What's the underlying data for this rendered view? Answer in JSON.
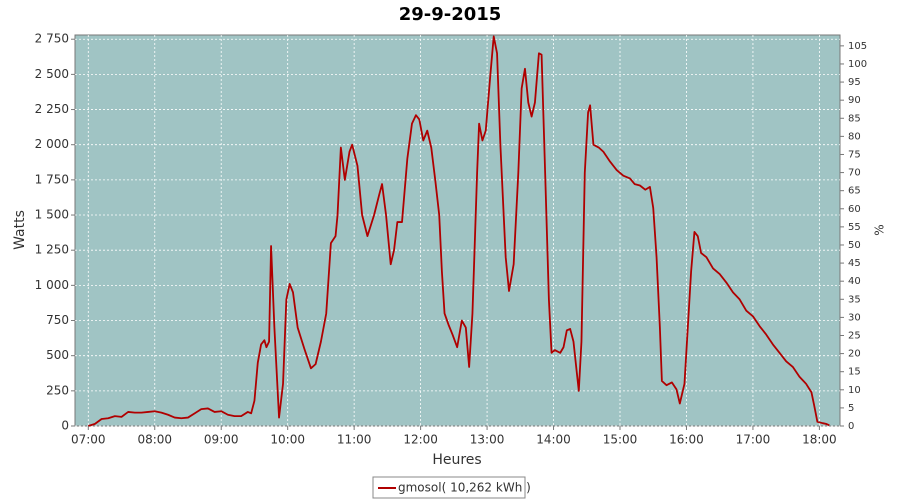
{
  "chart_data": {
    "type": "line",
    "title": "29-9-2015",
    "xlabel": "Heures",
    "ylabel": "Watts",
    "y2label": "%",
    "x": [
      7.0,
      7.1,
      7.2,
      7.3,
      7.4,
      7.5,
      7.6,
      7.7,
      7.8,
      7.9,
      8.0,
      8.1,
      8.2,
      8.3,
      8.4,
      8.5,
      8.6,
      8.7,
      8.8,
      8.9,
      9.0,
      9.1,
      9.2,
      9.3,
      9.4,
      9.45,
      9.5,
      9.55,
      9.6,
      9.65,
      9.68,
      9.72,
      9.75,
      9.8,
      9.87,
      9.93,
      9.98,
      10.03,
      10.08,
      10.15,
      10.25,
      10.35,
      10.42,
      10.5,
      10.58,
      10.65,
      10.72,
      10.75,
      10.8,
      10.86,
      10.93,
      10.97,
      11.05,
      11.12,
      11.2,
      11.3,
      11.38,
      11.42,
      11.48,
      11.55,
      11.6,
      11.65,
      11.72,
      11.8,
      11.87,
      11.93,
      11.98,
      12.04,
      12.1,
      12.16,
      12.22,
      12.28,
      12.32,
      12.36,
      12.42,
      12.48,
      12.55,
      12.62,
      12.68,
      12.73,
      12.78,
      12.85,
      12.88,
      12.93,
      12.98,
      13.05,
      13.1,
      13.15,
      13.2,
      13.28,
      13.33,
      13.4,
      13.47,
      13.52,
      13.57,
      13.62,
      13.67,
      13.72,
      13.78,
      13.82,
      13.88,
      13.93,
      13.97,
      14.02,
      14.1,
      14.15,
      14.2,
      14.25,
      14.3,
      14.35,
      14.38,
      14.42,
      14.47,
      14.52,
      14.55,
      14.6,
      14.68,
      14.75,
      14.85,
      14.95,
      15.05,
      15.15,
      15.22,
      15.3,
      15.38,
      15.45,
      15.5,
      15.55,
      15.6,
      15.63,
      15.7,
      15.78,
      15.85,
      15.9,
      15.97,
      16.02,
      16.07,
      16.12,
      16.17,
      16.22,
      16.3,
      16.4,
      16.5,
      16.6,
      16.7,
      16.8,
      16.9,
      17.0,
      17.1,
      17.2,
      17.3,
      17.4,
      17.5,
      17.6,
      17.7,
      17.8,
      17.88,
      17.92,
      17.97,
      18.05,
      18.1,
      18.15
    ],
    "series": [
      {
        "name": "gmosol( 10,262 kWh )",
        "color": "#b00000",
        "values": [
          0,
          15,
          50,
          55,
          70,
          65,
          100,
          95,
          95,
          100,
          105,
          95,
          80,
          60,
          55,
          60,
          90,
          120,
          125,
          100,
          105,
          80,
          70,
          70,
          100,
          90,
          180,
          450,
          580,
          610,
          560,
          600,
          1280,
          700,
          60,
          300,
          900,
          1010,
          950,
          700,
          550,
          410,
          440,
          600,
          800,
          1300,
          1350,
          1500,
          1980,
          1750,
          1950,
          2000,
          1850,
          1500,
          1350,
          1500,
          1650,
          1720,
          1500,
          1150,
          1250,
          1450,
          1450,
          1900,
          2150,
          2210,
          2180,
          2030,
          2100,
          1980,
          1750,
          1500,
          1100,
          800,
          720,
          650,
          560,
          750,
          700,
          420,
          800,
          1800,
          2150,
          2030,
          2100,
          2500,
          2770,
          2650,
          2000,
          1200,
          960,
          1150,
          1800,
          2400,
          2540,
          2300,
          2200,
          2300,
          2650,
          2640,
          1700,
          900,
          520,
          540,
          520,
          560,
          680,
          690,
          600,
          380,
          250,
          600,
          1800,
          2230,
          2280,
          2000,
          1980,
          1950,
          1880,
          1820,
          1780,
          1760,
          1720,
          1710,
          1680,
          1700,
          1550,
          1200,
          700,
          320,
          290,
          310,
          260,
          160,
          300,
          700,
          1100,
          1380,
          1350,
          1230,
          1200,
          1120,
          1080,
          1020,
          950,
          900,
          820,
          780,
          710,
          650,
          580,
          520,
          460,
          420,
          350,
          300,
          240,
          150,
          30,
          20,
          15,
          5
        ]
      }
    ],
    "xlim": [
      6.8,
      18.31
    ],
    "xticks": [
      {
        "value": 7,
        "label": "07:00"
      },
      {
        "value": 8,
        "label": "08:00"
      },
      {
        "value": 9,
        "label": "09:00"
      },
      {
        "value": 10,
        "label": "10:00"
      },
      {
        "value": 11,
        "label": "11:00"
      },
      {
        "value": 12,
        "label": "12:00"
      },
      {
        "value": 13,
        "label": "13:00"
      },
      {
        "value": 14,
        "label": "14:00"
      },
      {
        "value": 15,
        "label": "15:00"
      },
      {
        "value": 16,
        "label": "16:00"
      },
      {
        "value": 17,
        "label": "17:00"
      },
      {
        "value": 18,
        "label": "18:00"
      }
    ],
    "ylim": [
      0,
      2780
    ],
    "yticks": [
      0,
      250,
      500,
      750,
      {
        "value": 1000,
        "label": "1 000"
      },
      {
        "value": 1250,
        "label": "1 250"
      },
      {
        "value": 1500,
        "label": "1 500"
      },
      {
        "value": 1750,
        "label": "1 750"
      },
      {
        "value": 2000,
        "label": "2 000"
      },
      {
        "value": 2250,
        "label": "2 250"
      },
      {
        "value": 2500,
        "label": "2 500"
      },
      {
        "value": 2750,
        "label": "2 750"
      }
    ],
    "y2lim": [
      0,
      108
    ],
    "y2ticks": [
      0,
      5,
      10,
      15,
      20,
      25,
      30,
      35,
      40,
      45,
      50,
      55,
      60,
      65,
      70,
      75,
      80,
      85,
      90,
      95,
      100,
      105
    ],
    "grid": true,
    "legend_position": "bottom"
  }
}
